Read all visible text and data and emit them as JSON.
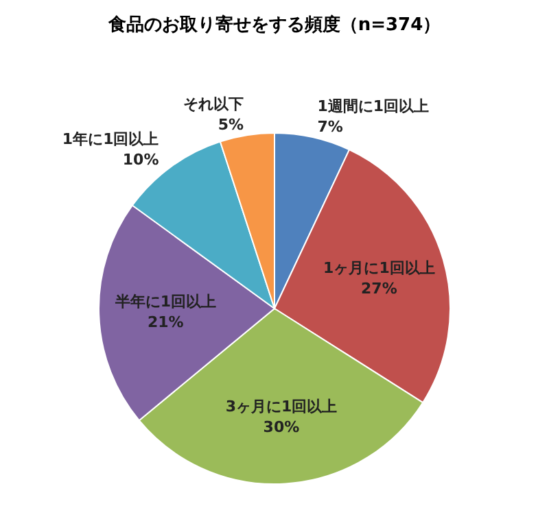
{
  "chart_data": {
    "type": "pie",
    "title": "食品のお取り寄せをする頻度（n=374）",
    "categories": [
      "1週間に1回以上",
      "1ヶ月に1回以上",
      "3ヶ月に1回以上",
      "半年に1回以上",
      "1年に1回以上",
      "それ以下"
    ],
    "values": [
      7,
      27,
      30,
      21,
      10,
      5
    ],
    "colors": [
      "#4f81bd",
      "#c0504d",
      "#9bbb59",
      "#8064a2",
      "#4bacc6",
      "#f79646"
    ],
    "value_labels": [
      "7%",
      "27%",
      "30%",
      "21%",
      "10%",
      "5%"
    ]
  }
}
